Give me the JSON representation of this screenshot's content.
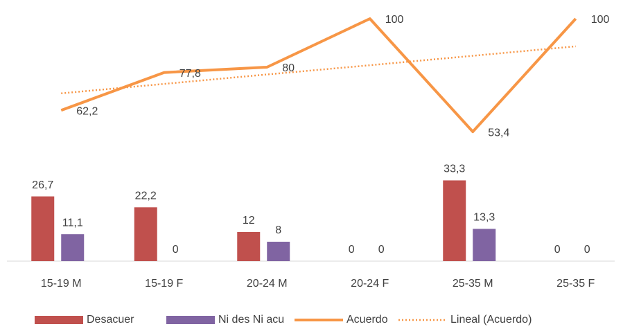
{
  "chart_data": {
    "type": "bar_line",
    "categories": [
      "15-19 M",
      "15-19 F",
      "20-24 M",
      "20-24 F",
      "25-35 M",
      "25-35 F"
    ],
    "series": [
      {
        "name": "Desacuer",
        "type": "bar",
        "color": "#c0504d",
        "values": [
          26.7,
          22.2,
          12,
          0,
          33.3,
          0
        ],
        "value_labels": [
          "26,7",
          "22,2",
          "12",
          "0",
          "33,3",
          "0"
        ]
      },
      {
        "name": "Ni des Ni acu",
        "type": "bar",
        "color": "#8064a2",
        "values": [
          11.1,
          0,
          8,
          0,
          13.3,
          0
        ],
        "value_labels": [
          "11,1",
          "0",
          "8",
          "0",
          "13,3",
          "0"
        ]
      },
      {
        "name": "Acuerdo",
        "type": "line",
        "color": "#f79646",
        "values": [
          62.2,
          77.8,
          80,
          100,
          53.4,
          100
        ],
        "value_labels": [
          "62,2",
          "77,8",
          "80",
          "100",
          "53,4",
          "100"
        ]
      },
      {
        "name": "Lineal (Acuerdo)",
        "type": "trendline",
        "color": "#f79646",
        "values": [
          69.2,
          73.1,
          77.0,
          80.8,
          84.7,
          88.6
        ]
      }
    ],
    "ylim": [
      0,
      100
    ],
    "legend": "bottom"
  }
}
